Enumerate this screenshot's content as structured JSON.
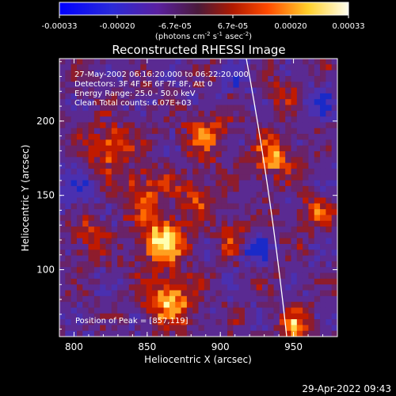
{
  "colorbar": {
    "tick_labels": [
      "-0.00033",
      "-0.00020",
      "-6.7e-05",
      "6.7e-05",
      "0.00020",
      "0.00033"
    ],
    "units_main": "(photons cm",
    "units_sup1": "-2",
    "units_mid1": " s",
    "units_sup2": "-1",
    "units_mid2": " asec",
    "units_sup3": "-2",
    "units_end": ")",
    "colors": [
      "#0000d8",
      "#2a2aa0",
      "#5a1f6a",
      "#7a1e2a",
      "#b01a00",
      "#ff5a00",
      "#ffd12a",
      "#ffffc8"
    ]
  },
  "image": {
    "title": "Reconstructed RHESSI Image",
    "info_lines": [
      "27-May-2002 06:16:20.000 to 06:22:20.000",
      "Detectors: 3F 4F 5F 6F 7F 8F, Att 0",
      "Energy Range: 25.0 - 50.0 keV",
      "Clean     Total counts: 6.07E+03"
    ],
    "peak_label": "Position of Peak = [857,119]",
    "xlabel": "Heliocentric X (arcsec)",
    "ylabel": "Heliocentric Y (arcsec)",
    "x_ticks": [
      800,
      850,
      900,
      950
    ],
    "y_ticks": [
      100,
      150,
      200
    ],
    "xlim": [
      790,
      980
    ],
    "ylim": [
      55,
      242
    ],
    "limb_line_color": "#ffffff"
  },
  "footer": {
    "timestamp": "29-Apr-2022 09:43"
  }
}
